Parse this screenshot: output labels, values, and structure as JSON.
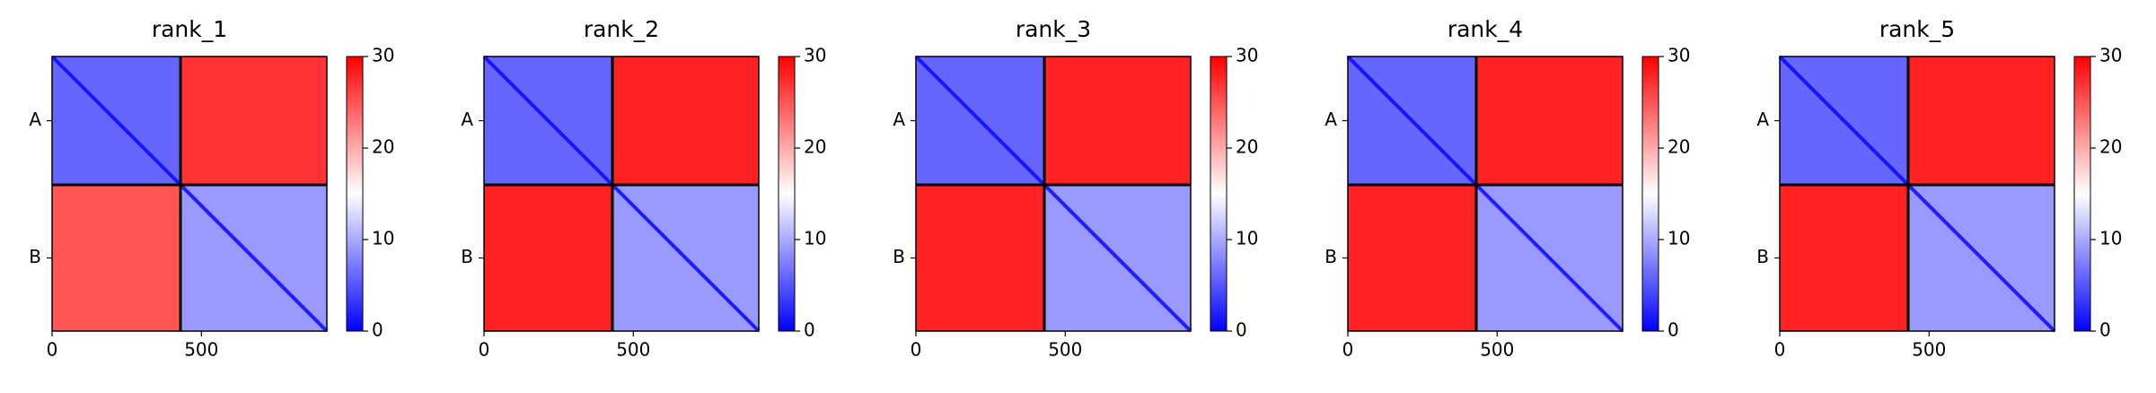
{
  "chart_data": [
    {
      "type": "heatmap",
      "title": "rank_1",
      "categories": [
        "A",
        "B"
      ],
      "chain_breaks": [
        430
      ],
      "xlim": [
        0,
        920
      ],
      "xticks": [
        0,
        500
      ],
      "values": [
        [
          6,
          27
        ],
        [
          25,
          9
        ]
      ],
      "clim": [
        0,
        30
      ],
      "cticks": [
        0,
        10,
        20,
        30
      ],
      "colormap": [
        "#0000ff",
        "#ffffff",
        "#ff0000"
      ]
    },
    {
      "type": "heatmap",
      "title": "rank_2",
      "categories": [
        "A",
        "B"
      ],
      "chain_breaks": [
        430
      ],
      "xlim": [
        0,
        920
      ],
      "xticks": [
        0,
        500
      ],
      "values": [
        [
          6,
          28
        ],
        [
          28,
          9
        ]
      ],
      "clim": [
        0,
        30
      ],
      "cticks": [
        0,
        10,
        20,
        30
      ],
      "colormap": [
        "#0000ff",
        "#ffffff",
        "#ff0000"
      ]
    },
    {
      "type": "heatmap",
      "title": "rank_3",
      "categories": [
        "A",
        "B"
      ],
      "chain_breaks": [
        430
      ],
      "xlim": [
        0,
        920
      ],
      "xticks": [
        0,
        500
      ],
      "values": [
        [
          6,
          28
        ],
        [
          28,
          9
        ]
      ],
      "clim": [
        0,
        30
      ],
      "cticks": [
        0,
        10,
        20,
        30
      ],
      "colormap": [
        "#0000ff",
        "#ffffff",
        "#ff0000"
      ]
    },
    {
      "type": "heatmap",
      "title": "rank_4",
      "categories": [
        "A",
        "B"
      ],
      "chain_breaks": [
        430
      ],
      "xlim": [
        0,
        920
      ],
      "xticks": [
        0,
        500
      ],
      "values": [
        [
          6,
          28
        ],
        [
          28,
          9
        ]
      ],
      "clim": [
        0,
        30
      ],
      "cticks": [
        0,
        10,
        20,
        30
      ],
      "colormap": [
        "#0000ff",
        "#ffffff",
        "#ff0000"
      ]
    },
    {
      "type": "heatmap",
      "title": "rank_5",
      "categories": [
        "A",
        "B"
      ],
      "chain_breaks": [
        430
      ],
      "xlim": [
        0,
        920
      ],
      "xticks": [
        0,
        500
      ],
      "values": [
        [
          6,
          28
        ],
        [
          28,
          9
        ]
      ],
      "clim": [
        0,
        30
      ],
      "cticks": [
        0,
        10,
        20,
        30
      ],
      "colormap": [
        "#0000ff",
        "#ffffff",
        "#ff0000"
      ]
    }
  ]
}
